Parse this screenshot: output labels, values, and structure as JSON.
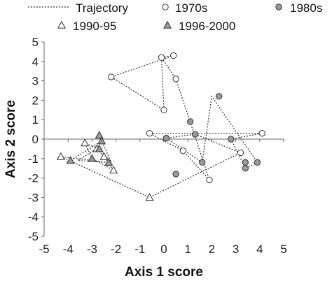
{
  "chart_data": {
    "type": "scatter",
    "xlabel": "Axis 1 score",
    "ylabel": "Axis 2 score",
    "xlim": [
      -5,
      5
    ],
    "ylim": [
      -5,
      5
    ],
    "xticks": [
      -5,
      -4,
      -3,
      -2,
      -1,
      0,
      1,
      2,
      3,
      4,
      5
    ],
    "yticks": [
      5,
      4,
      3,
      2,
      1,
      0,
      -1,
      -2,
      -3,
      -4,
      -5
    ],
    "grid": false,
    "legend_position": "top",
    "trajectory": {
      "name": "Trajectory",
      "color": "#333333",
      "style": "dotted",
      "points": [
        [
          -0.1,
          4.2
        ],
        [
          0.4,
          4.3
        ],
        [
          -2.2,
          3.2
        ],
        [
          0,
          1.5
        ],
        [
          -0.1,
          4.2
        ],
        [
          0.5,
          3.1
        ],
        [
          1.9,
          -2.1
        ],
        [
          0.8,
          -0.6
        ],
        [
          -0.6,
          0.3
        ],
        [
          4.1,
          0.3
        ],
        [
          2.8,
          0.0
        ],
        [
          3.4,
          -1.5
        ],
        [
          3.9,
          -1.2
        ],
        [
          2.0,
          2.2
        ],
        [
          1.6,
          -1.2
        ],
        [
          0.1,
          0.05
        ],
        [
          1.3,
          0.25
        ],
        [
          3.2,
          -0.7
        ],
        [
          -0.6,
          -3.0
        ],
        [
          -4.3,
          -0.9
        ],
        [
          -2.3,
          -1.2
        ],
        [
          -3.6,
          -1.1
        ],
        [
          -2.8,
          -0.5
        ],
        [
          -2.5,
          -0.9
        ],
        [
          -2.1,
          -1.6
        ],
        [
          -3.0,
          -1.0
        ],
        [
          -3.3,
          -0.2
        ],
        [
          -2.7,
          -0.5
        ],
        [
          -2.2,
          -1.2
        ],
        [
          -2.7,
          0.2
        ],
        [
          -2.6,
          -0.1
        ],
        [
          -3.9,
          -1.1
        ]
      ]
    },
    "series": [
      {
        "name": "1970s",
        "marker": "circle",
        "fill": "#ffffff",
        "stroke": "#333333",
        "points": [
          [
            -0.1,
            4.2
          ],
          [
            0.4,
            4.3
          ],
          [
            -2.2,
            3.2
          ],
          [
            0,
            1.5
          ],
          [
            0.5,
            3.1
          ],
          [
            -0.6,
            0.3
          ],
          [
            0.8,
            -0.6
          ],
          [
            1.9,
            -2.1
          ],
          [
            3.2,
            -0.7
          ],
          [
            4.1,
            0.3
          ]
        ]
      },
      {
        "name": "1980s",
        "marker": "circle",
        "fill": "#9a9a9a",
        "stroke": "#333333",
        "points": [
          [
            2.3,
            2.2
          ],
          [
            1.1,
            0.9
          ],
          [
            1.3,
            0.25
          ],
          [
            0.1,
            0.05
          ],
          [
            2.8,
            0.0
          ],
          [
            1.6,
            -1.2
          ],
          [
            0.5,
            -1.8
          ],
          [
            3.4,
            -1.2
          ],
          [
            3.4,
            -1.5
          ],
          [
            3.9,
            -1.2
          ]
        ]
      },
      {
        "name": "1990-95",
        "marker": "triangle",
        "fill": "#ffffff",
        "stroke": "#333333",
        "points": [
          [
            -4.3,
            -0.9
          ],
          [
            -3.3,
            -0.2
          ],
          [
            -2.8,
            -0.5
          ],
          [
            -2.5,
            -0.9
          ],
          [
            -2.1,
            -1.6
          ],
          [
            -0.6,
            -3.0
          ]
        ]
      },
      {
        "name": "1996-2000",
        "marker": "triangle",
        "fill": "#9a9a9a",
        "stroke": "#333333",
        "points": [
          [
            -2.7,
            0.2
          ],
          [
            -2.6,
            -0.1
          ],
          [
            -2.7,
            -0.5
          ],
          [
            -3.0,
            -1.0
          ],
          [
            -3.9,
            -1.1
          ],
          [
            -2.3,
            -1.2
          ]
        ]
      }
    ]
  }
}
